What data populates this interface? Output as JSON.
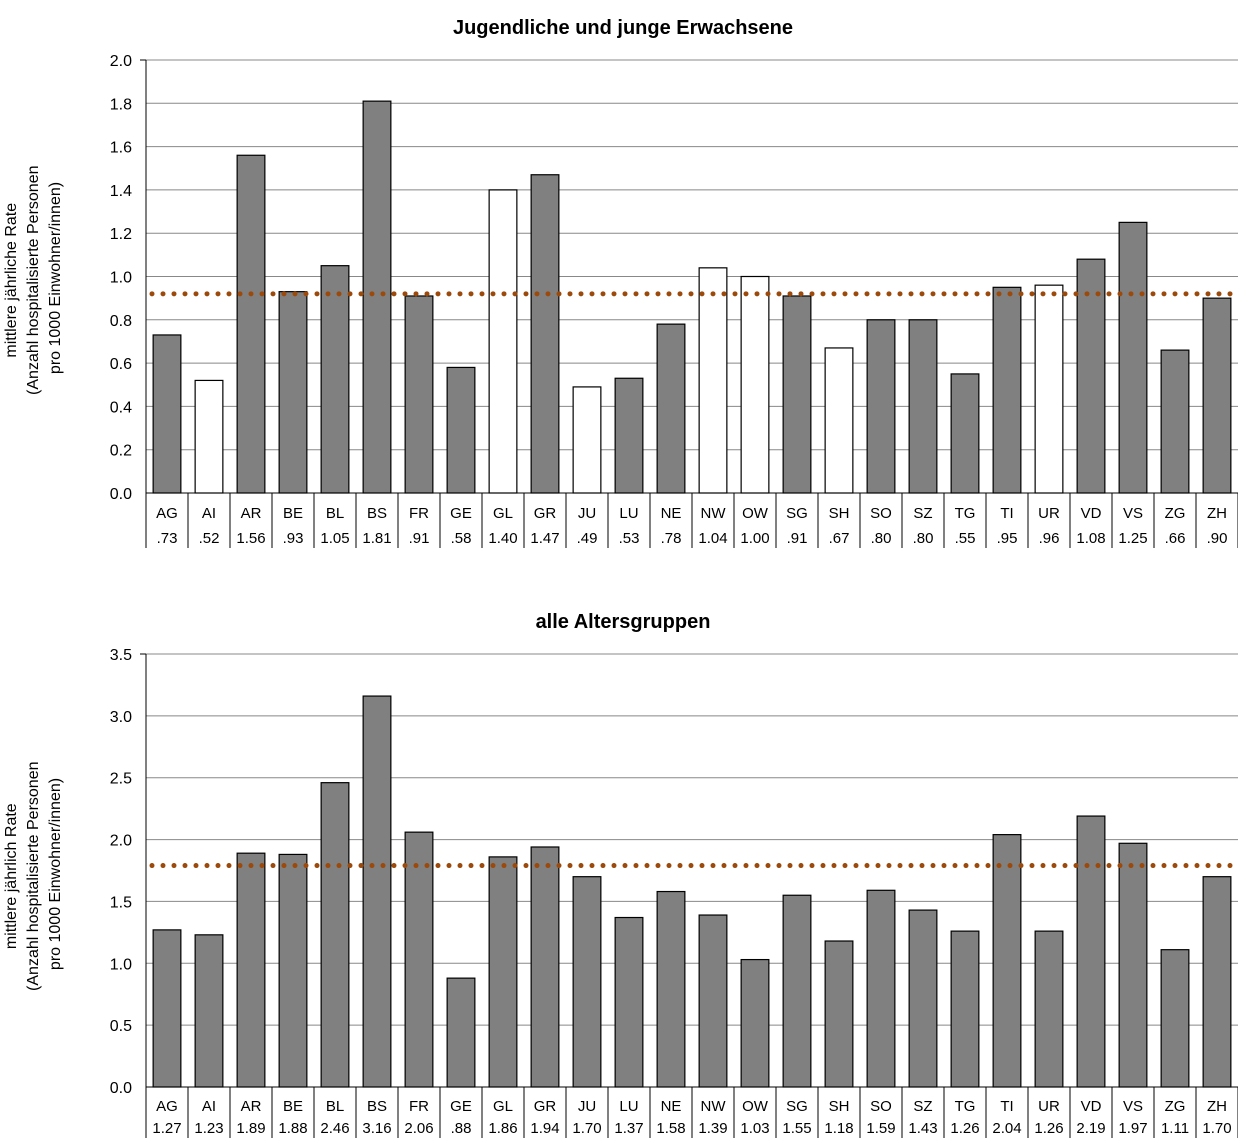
{
  "chart_data": [
    {
      "type": "bar",
      "title": "Jugendliche und junge Erwachsene",
      "ylabel": [
        "mittlere jährliche Rate",
        "(Anzahl hospitalisierte Personen",
        "pro 1000 Einwohner/innen)"
      ],
      "ylim": [
        0,
        2.0
      ],
      "yticks": [
        "0.0",
        "0.2",
        "0.4",
        "0.6",
        "0.8",
        "1.0",
        "1.2",
        "1.4",
        "1.6",
        "1.8",
        "2.0"
      ],
      "grid": true,
      "categories": [
        "AG",
        "AI",
        "AR",
        "BE",
        "BL",
        "BS",
        "FR",
        "GE",
        "GL",
        "GR",
        "JU",
        "LU",
        "NE",
        "NW",
        "OW",
        "SG",
        "SH",
        "SO",
        "SZ",
        "TG",
        "TI",
        "UR",
        "VD",
        "VS",
        "ZG",
        "ZH"
      ],
      "values": [
        0.73,
        0.52,
        1.56,
        0.93,
        1.05,
        1.81,
        0.91,
        0.58,
        1.4,
        1.47,
        0.49,
        0.53,
        0.78,
        1.04,
        1.0,
        0.91,
        0.67,
        0.8,
        0.8,
        0.55,
        0.95,
        0.96,
        1.08,
        1.25,
        0.66,
        0.9
      ],
      "value_labels": [
        ".73",
        ".52",
        "1.56",
        ".93",
        "1.05",
        "1.81",
        ".91",
        ".58",
        "1.40",
        "1.47",
        ".49",
        ".53",
        ".78",
        "1.04",
        "1.00",
        ".91",
        ".67",
        ".80",
        ".80",
        ".55",
        ".95",
        ".96",
        "1.08",
        "1.25",
        ".66",
        ".90"
      ],
      "bar_fill": [
        "gray",
        "white",
        "gray",
        "gray",
        "gray",
        "gray",
        "gray",
        "gray",
        "white",
        "gray",
        "white",
        "gray",
        "gray",
        "white",
        "white",
        "gray",
        "white",
        "gray",
        "gray",
        "gray",
        "gray",
        "white",
        "gray",
        "gray",
        "gray",
        "gray"
      ],
      "reference_line": 0.92
    },
    {
      "type": "bar",
      "title": "alle Altersgruppen",
      "ylabel": [
        "mittlere jährlich Rate",
        "(Anzahl hospitalisierte Personen",
        "pro 1000 Einwohner/innen)"
      ],
      "ylim": [
        0,
        3.5
      ],
      "yticks": [
        "0.0",
        "0.5",
        "1.0",
        "1.5",
        "2.0",
        "2.5",
        "3.0",
        "3.5"
      ],
      "grid": true,
      "categories": [
        "AG",
        "AI",
        "AR",
        "BE",
        "BL",
        "BS",
        "FR",
        "GE",
        "GL",
        "GR",
        "JU",
        "LU",
        "NE",
        "NW",
        "OW",
        "SG",
        "SH",
        "SO",
        "SZ",
        "TG",
        "TI",
        "UR",
        "VD",
        "VS",
        "ZG",
        "ZH"
      ],
      "values": [
        1.27,
        1.23,
        1.89,
        1.88,
        2.46,
        3.16,
        2.06,
        0.88,
        1.86,
        1.94,
        1.7,
        1.37,
        1.58,
        1.39,
        1.03,
        1.55,
        1.18,
        1.59,
        1.43,
        1.26,
        2.04,
        1.26,
        2.19,
        1.97,
        1.11,
        1.7
      ],
      "value_labels": [
        "1.27",
        "1.23",
        "1.89",
        "1.88",
        "2.46",
        "3.16",
        "2.06",
        ".88",
        "1.86",
        "1.94",
        "1.70",
        "1.37",
        "1.58",
        "1.39",
        "1.03",
        "1.55",
        "1.18",
        "1.59",
        "1.43",
        "1.26",
        "2.04",
        "1.26",
        "2.19",
        "1.97",
        "1.11",
        "1.70"
      ],
      "bar_fill": [
        "gray",
        "gray",
        "gray",
        "gray",
        "gray",
        "gray",
        "gray",
        "gray",
        "gray",
        "gray",
        "gray",
        "gray",
        "gray",
        "gray",
        "gray",
        "gray",
        "gray",
        "gray",
        "gray",
        "gray",
        "gray",
        "gray",
        "gray",
        "gray",
        "gray",
        "gray"
      ],
      "reference_line": 1.79
    }
  ],
  "colors": {
    "bar_gray": "#808080",
    "bar_white": "#ffffff",
    "bar_stroke": "#000000",
    "grid": "#888888",
    "reference_line": "#9c4a0c"
  }
}
